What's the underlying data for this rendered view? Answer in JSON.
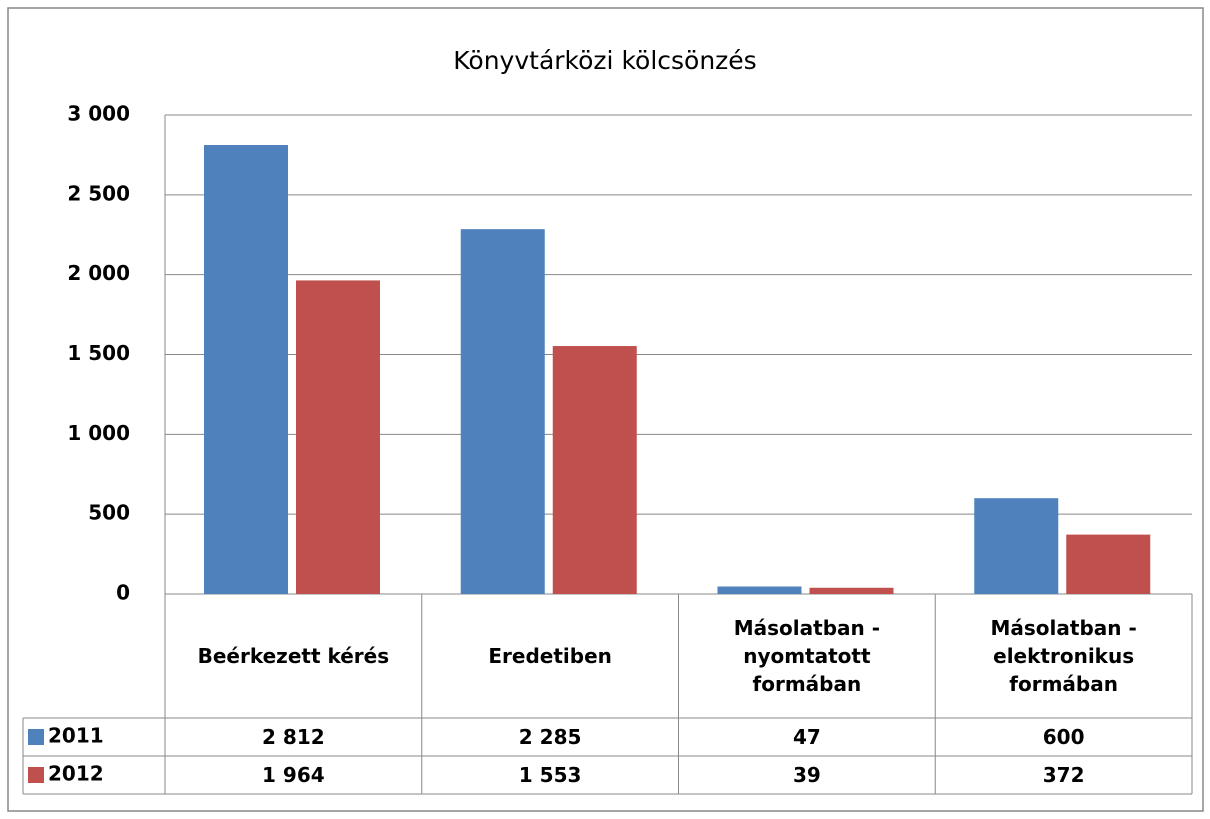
{
  "chart_data": {
    "type": "bar",
    "title": "Könyvtárközi kölcsönzés",
    "categories": [
      "Beérkezett kérés",
      "Eredetiben",
      "Másolatban - nyomtatott formában",
      "Másolatban - elektronikus formában"
    ],
    "series": [
      {
        "name": "2011",
        "color": "#4f81bd",
        "values": [
          2812,
          2285,
          47,
          600
        ],
        "value_labels": [
          "2 812",
          "2 285",
          "47",
          "600"
        ]
      },
      {
        "name": "2012",
        "color": "#c0504d",
        "values": [
          1964,
          1553,
          39,
          372
        ],
        "value_labels": [
          "1 964",
          "1 553",
          "39",
          "372"
        ]
      }
    ],
    "ylim": [
      0,
      3000
    ],
    "yticks": [
      0,
      {
        "value": 500,
        "label": "500"
      },
      {
        "value": 1000,
        "label": "1 000"
      },
      {
        "value": 1500,
        "label": "1 500"
      },
      {
        "value": 2000,
        "label": "2 000"
      },
      {
        "value": 2500,
        "label": "2 500"
      },
      {
        "value": 3000,
        "label": "3 000"
      }
    ],
    "grid": true,
    "legend": "table"
  }
}
